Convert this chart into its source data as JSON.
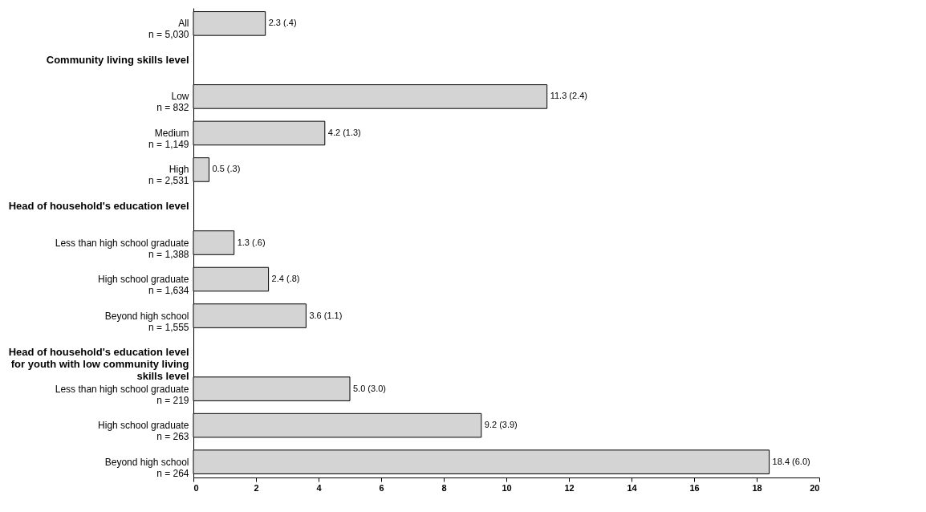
{
  "chart_data": {
    "type": "bar",
    "orientation": "horizontal",
    "categories": [
      "All\nn = 5,030",
      "Community living skills level",
      "Low\nn = 832",
      "Medium\nn = 1,149",
      "High\nn = 2,531",
      "Head of household's education level",
      "Less than high school graduate\nn = 1,388",
      "High school graduate\nn = 1,634",
      "Beyond high school\nn = 1,555",
      "Head of household's education level for youth with low community living skills level",
      "Less than high school graduate\nn = 219",
      "High school graduate\nn = 263",
      "Beyond high school\nn = 264"
    ],
    "values": [
      2.3,
      null,
      11.3,
      4.2,
      0.5,
      null,
      1.3,
      2.4,
      3.6,
      null,
      5.0,
      9.2,
      18.4
    ],
    "value_labels": [
      "2.3 (.4)",
      null,
      "11.3 (2.4)",
      "4.2 (1.3)",
      "0.5 (.3)",
      null,
      "1.3 (.6)",
      "2.4 (.8)",
      "3.6 (1.1)",
      null,
      "5.0 (3.0)",
      "9.2 (3.9)",
      "18.4 (6.0)"
    ],
    "color": "#d4d4d4",
    "xlim": [
      0,
      20
    ],
    "xticks": [
      0,
      2,
      4,
      6,
      8,
      10,
      12,
      14,
      16,
      18,
      20
    ],
    "grid": false
  }
}
